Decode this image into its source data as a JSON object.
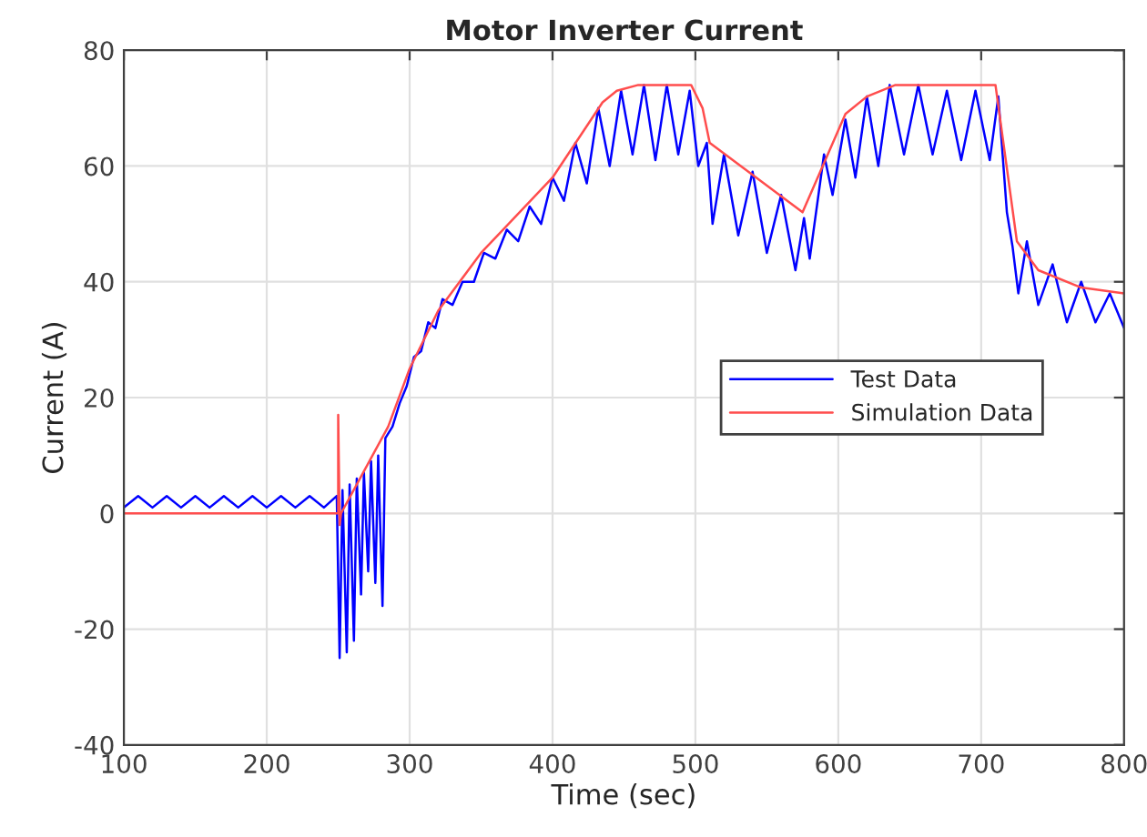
{
  "chart_data": {
    "type": "line",
    "title": "Motor Inverter Current",
    "xlabel": "Time (sec)",
    "ylabel": "Current (A)",
    "xlim": [
      100,
      800
    ],
    "xticks": [
      100,
      200,
      300,
      400,
      500,
      600,
      700,
      800
    ],
    "ylim": [
      -40,
      80
    ],
    "yticks": [
      -40,
      -20,
      0,
      20,
      40,
      60,
      80
    ],
    "grid": true,
    "legend": "right",
    "line_style": "solid",
    "marker": "none",
    "series": [
      {
        "name": "Test Data",
        "color": "#0000ff",
        "x": [
          100,
          110,
          120,
          130,
          140,
          150,
          160,
          170,
          180,
          190,
          200,
          210,
          220,
          230,
          240,
          249,
          251,
          253,
          256,
          258,
          261,
          263,
          266,
          268,
          271,
          273,
          276,
          278,
          281,
          283,
          288,
          293,
          298,
          303,
          308,
          313,
          318,
          323,
          330,
          337,
          345,
          352,
          360,
          368,
          376,
          384,
          392,
          400,
          408,
          416,
          424,
          432,
          440,
          448,
          456,
          464,
          472,
          480,
          488,
          496,
          502,
          508,
          512,
          520,
          530,
          540,
          550,
          560,
          570,
          576,
          580,
          590,
          596,
          605,
          612,
          620,
          628,
          636,
          646,
          656,
          666,
          676,
          686,
          696,
          706,
          712,
          718,
          722,
          726,
          732,
          740,
          750,
          760,
          770,
          780,
          790,
          800
        ],
        "values": [
          1,
          3,
          1,
          3,
          1,
          3,
          1,
          3,
          1,
          3,
          1,
          3,
          1,
          3,
          1,
          3,
          -25,
          4,
          -24,
          5,
          -22,
          6,
          -14,
          7,
          -10,
          9,
          -12,
          10,
          -16,
          13,
          15,
          19,
          22,
          27,
          28,
          33,
          32,
          37,
          36,
          40,
          40,
          45,
          44,
          49,
          47,
          53,
          50,
          58,
          54,
          64,
          57,
          70,
          60,
          73,
          62,
          74,
          61,
          74,
          62,
          73,
          60,
          64,
          50,
          62,
          48,
          59,
          45,
          55,
          42,
          51,
          44,
          62,
          55,
          68,
          58,
          72,
          60,
          74,
          62,
          74,
          62,
          73,
          61,
          73,
          61,
          72,
          52,
          46,
          38,
          47,
          36,
          43,
          33,
          40,
          33,
          38,
          32
        ]
      },
      {
        "name": "Simulation Data",
        "color": "#ff4d4d",
        "x": [
          100,
          250,
          250,
          251,
          252,
          285,
          300,
          320,
          350,
          400,
          435,
          445,
          460,
          497,
          505,
          510,
          575,
          605,
          620,
          640,
          710,
          725,
          740,
          770,
          800
        ],
        "values": [
          0,
          0,
          17,
          -2,
          0,
          15,
          25,
          35,
          45,
          58,
          71,
          73,
          74,
          74,
          70,
          64,
          52,
          69,
          72,
          74,
          74,
          47,
          42,
          39,
          38
        ]
      }
    ]
  }
}
